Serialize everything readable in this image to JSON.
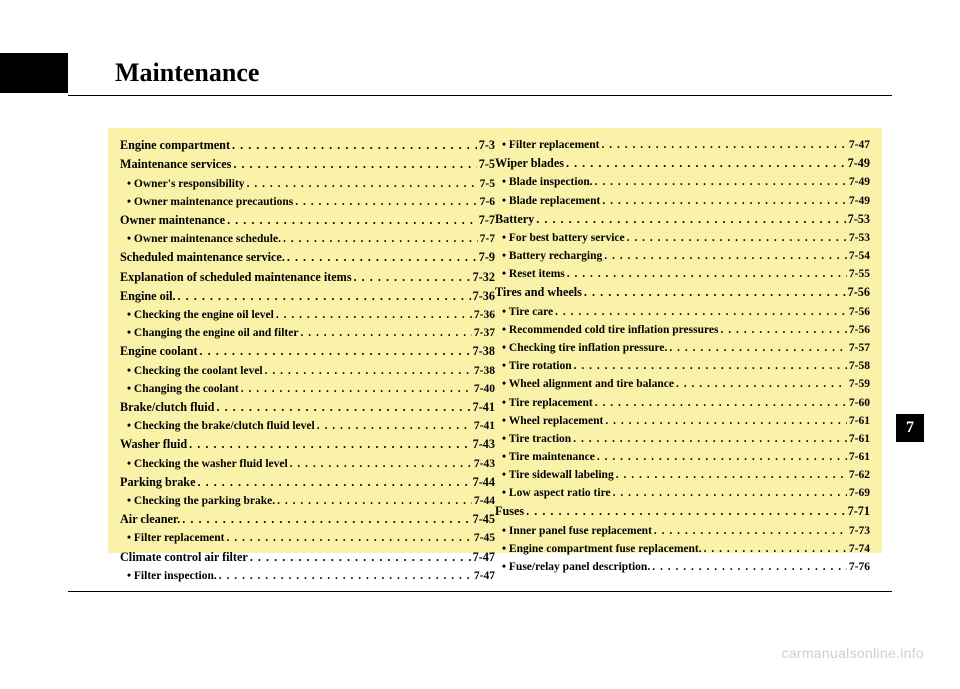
{
  "title": "Maintenance",
  "chapter_tab": "7",
  "watermark": "carmanualsonline.info",
  "left_column": [
    {
      "label": "Engine compartment",
      "page": "7-3",
      "class": "h"
    },
    {
      "label": "Maintenance services",
      "page": "7-5",
      "class": "h"
    },
    {
      "label": "• Owner's responsibility",
      "page": "7-5",
      "class": "sub"
    },
    {
      "label": "• Owner maintenance precautions",
      "page": "7-6",
      "class": "sub"
    },
    {
      "label": "Owner maintenance",
      "page": "7-7",
      "class": "h"
    },
    {
      "label": "• Owner maintenance schedule.",
      "page": "7-7",
      "class": "sub"
    },
    {
      "label": "Scheduled maintenance service.",
      "page": "7-9",
      "class": "h"
    },
    {
      "label": "Explanation of scheduled maintenance items",
      "page": "7-32",
      "class": "h"
    },
    {
      "label": "Engine oil.",
      "page": "7-36",
      "class": "h"
    },
    {
      "label": "• Checking the engine oil level",
      "page": "7-36",
      "class": "sub"
    },
    {
      "label": "• Changing the engine oil and filter",
      "page": "7-37",
      "class": "sub"
    },
    {
      "label": "Engine coolant",
      "page": "7-38",
      "class": "h"
    },
    {
      "label": "• Checking the coolant level",
      "page": "7-38",
      "class": "sub"
    },
    {
      "label": "• Changing the coolant",
      "page": "7-40",
      "class": "sub"
    },
    {
      "label": "Brake/clutch fluid",
      "page": "7-41",
      "class": "h"
    },
    {
      "label": "• Checking the brake/clutch fluid level",
      "page": "7-41",
      "class": "sub"
    },
    {
      "label": "Washer fluid",
      "page": "7-43",
      "class": "h"
    },
    {
      "label": "• Checking the washer fluid level",
      "page": "7-43",
      "class": "sub"
    },
    {
      "label": "Parking brake",
      "page": "7-44",
      "class": "h"
    },
    {
      "label": "• Checking the parking brake.",
      "page": "7-44",
      "class": "sub"
    },
    {
      "label": "Air cleaner.",
      "page": "7-45",
      "class": "h"
    },
    {
      "label": "• Filter replacement",
      "page": "7-45",
      "class": "sub"
    },
    {
      "label": "Climate control air filter",
      "page": "7-47",
      "class": "h"
    },
    {
      "label": "• Filter inspection.",
      "page": "7-47",
      "class": "sub"
    }
  ],
  "right_column": [
    {
      "label": "• Filter replacement",
      "page": "7-47",
      "class": "sub"
    },
    {
      "label": "Wiper blades",
      "page": "7-49",
      "class": "h"
    },
    {
      "label": "• Blade inspection.",
      "page": "7-49",
      "class": "sub"
    },
    {
      "label": "• Blade replacement",
      "page": "7-49",
      "class": "sub"
    },
    {
      "label": "Battery",
      "page": "7-53",
      "class": "h"
    },
    {
      "label": "• For best battery service",
      "page": "7-53",
      "class": "sub"
    },
    {
      "label": "• Battery recharging",
      "page": "7-54",
      "class": "sub"
    },
    {
      "label": "• Reset items",
      "page": "7-55",
      "class": "sub"
    },
    {
      "label": "Tires and wheels",
      "page": "7-56",
      "class": "h"
    },
    {
      "label": "• Tire care",
      "page": "7-56",
      "class": "sub"
    },
    {
      "label": "• Recommended cold tire inflation pressures",
      "page": "7-56",
      "class": "sub"
    },
    {
      "label": "• Checking tire inflation pressure.",
      "page": "7-57",
      "class": "sub"
    },
    {
      "label": "• Tire rotation",
      "page": "7-58",
      "class": "sub"
    },
    {
      "label": "• Wheel alignment and tire balance",
      "page": "7-59",
      "class": "sub"
    },
    {
      "label": "• Tire replacement",
      "page": "7-60",
      "class": "sub"
    },
    {
      "label": "• Wheel replacement",
      "page": "7-61",
      "class": "sub"
    },
    {
      "label": "• Tire traction",
      "page": "7-61",
      "class": "sub"
    },
    {
      "label": "• Tire maintenance",
      "page": "7-61",
      "class": "sub"
    },
    {
      "label": "• Tire sidewall labeling",
      "page": "7-62",
      "class": "sub"
    },
    {
      "label": "• Low aspect ratio tire",
      "page": "7-69",
      "class": "sub"
    },
    {
      "label": "Fuses",
      "page": "7-71",
      "class": "h"
    },
    {
      "label": "• Inner panel fuse replacement",
      "page": "7-73",
      "class": "sub"
    },
    {
      "label": "• Engine compartment fuse replacement.",
      "page": "7-74",
      "class": "sub"
    },
    {
      "label": "• Fuse/relay panel description.",
      "page": "7-76",
      "class": "sub"
    }
  ]
}
